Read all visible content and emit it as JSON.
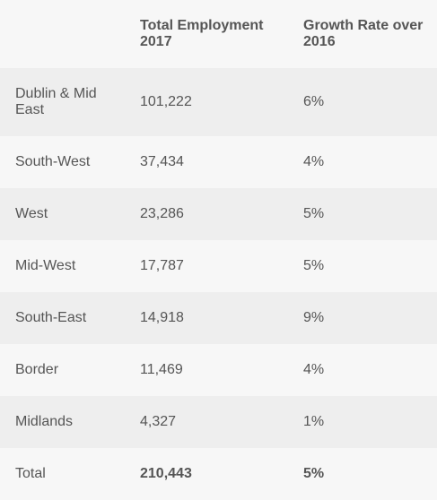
{
  "table": {
    "headers": [
      "",
      "Total Employment 2017",
      "Growth Rate over 2016"
    ],
    "rows": [
      {
        "region": "Dublin & Mid East",
        "employment": "101,222",
        "growth": "6%"
      },
      {
        "region": "South-West",
        "employment": "37,434",
        "growth": "4%"
      },
      {
        "region": "West",
        "employment": "23,286",
        "growth": "5%"
      },
      {
        "region": "Mid-West",
        "employment": "17,787",
        "growth": "5%"
      },
      {
        "region": "South-East",
        "employment": "14,918",
        "growth": "9%"
      },
      {
        "region": "Border",
        "employment": "11,469",
        "growth": "4%"
      },
      {
        "region": "Midlands",
        "employment": "4,327",
        "growth": "1%"
      }
    ],
    "total": {
      "region": "Total",
      "employment": "210,443",
      "growth": "5%"
    }
  },
  "colors": {
    "header_bg": "#f7f7f7",
    "row_dark": "#eeeeee",
    "row_light": "#f7f7f7",
    "text": "#555555"
  }
}
